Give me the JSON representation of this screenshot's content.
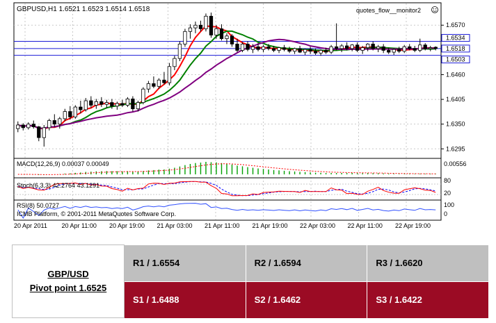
{
  "chart_data": {
    "type": "candlestick",
    "title": "GBPUSD,H1  1.6521 1.6523 1.6514 1.6518",
    "window_label": "quotes_flow__monitor2",
    "copyright": "ICMB Platform, © 2001-2011 MetaQuotes Software Corp.",
    "price_axis": {
      "ticks": [
        "1.6570",
        "1.6460",
        "1.6405",
        "1.6350",
        "1.6295"
      ],
      "tick_values": [
        1.657,
        1.646,
        1.6405,
        1.635,
        1.6295
      ],
      "ylim": [
        1.628,
        1.6592
      ]
    },
    "horizontal_lines": [
      {
        "label": "1.6534",
        "value": 1.6534
      },
      {
        "label": "1.6518",
        "value": 1.6518
      },
      {
        "label": "1.6503",
        "value": 1.6503
      }
    ],
    "time_labels": [
      "20 Apr 2011",
      "20 Apr 11:00",
      "20 Apr 19:00",
      "21 Apr 03:00",
      "21 Apr 11:00",
      "21 Apr 19:00",
      "22 Apr 03:00",
      "22 Apr 11:00",
      "22 Apr 19:00"
    ],
    "candles": [
      [
        1.634,
        1.6356,
        1.6332,
        1.6348
      ],
      [
        1.6348,
        1.6352,
        1.6336,
        1.6342
      ],
      [
        1.6342,
        1.6354,
        1.6338,
        1.635
      ],
      [
        1.635,
        1.6358,
        1.634,
        1.6344
      ],
      [
        1.6344,
        1.6346,
        1.6312,
        1.632
      ],
      [
        1.632,
        1.6348,
        1.63,
        1.6342
      ],
      [
        1.6342,
        1.6362,
        1.6336,
        1.6358
      ],
      [
        1.6358,
        1.6372,
        1.6344,
        1.635
      ],
      [
        1.635,
        1.6366,
        1.634,
        1.6362
      ],
      [
        1.6362,
        1.6384,
        1.6356,
        1.6378
      ],
      [
        1.6378,
        1.639,
        1.636,
        1.6366
      ],
      [
        1.6366,
        1.6392,
        1.6362,
        1.6388
      ],
      [
        1.6388,
        1.6402,
        1.6374,
        1.6382
      ],
      [
        1.6382,
        1.6408,
        1.6378,
        1.6402
      ],
      [
        1.6402,
        1.6412,
        1.6386,
        1.6392
      ],
      [
        1.6392,
        1.6406,
        1.6384,
        1.64
      ],
      [
        1.64,
        1.641,
        1.6388,
        1.6394
      ],
      [
        1.6394,
        1.6404,
        1.6386,
        1.6398
      ],
      [
        1.6398,
        1.6406,
        1.6384,
        1.639
      ],
      [
        1.639,
        1.64,
        1.6382,
        1.6396
      ],
      [
        1.6396,
        1.6404,
        1.6388,
        1.6392
      ],
      [
        1.6392,
        1.641,
        1.6388,
        1.6406
      ],
      [
        1.6406,
        1.6412,
        1.6378,
        1.6384
      ],
      [
        1.6384,
        1.6402,
        1.6378,
        1.6398
      ],
      [
        1.6398,
        1.6432,
        1.6394,
        1.6428
      ],
      [
        1.6428,
        1.6446,
        1.642,
        1.644
      ],
      [
        1.644,
        1.6456,
        1.643,
        1.6434
      ],
      [
        1.6434,
        1.6452,
        1.6428,
        1.6448
      ],
      [
        1.6448,
        1.6466,
        1.6438,
        1.6442
      ],
      [
        1.6442,
        1.6486,
        1.6436,
        1.6478
      ],
      [
        1.6478,
        1.6502,
        1.647,
        1.6496
      ],
      [
        1.6496,
        1.6534,
        1.649,
        1.6528
      ],
      [
        1.6528,
        1.6562,
        1.6522,
        1.6556
      ],
      [
        1.6556,
        1.6572,
        1.654,
        1.6564
      ],
      [
        1.6564,
        1.6578,
        1.6552,
        1.657
      ],
      [
        1.657,
        1.658,
        1.6556,
        1.6562
      ],
      [
        1.6562,
        1.6596,
        1.6556,
        1.659
      ],
      [
        1.659,
        1.6598,
        1.6542,
        1.6548
      ],
      [
        1.6548,
        1.657,
        1.654,
        1.6562
      ],
      [
        1.6562,
        1.6572,
        1.6536,
        1.654
      ],
      [
        1.654,
        1.6552,
        1.6528,
        1.6546
      ],
      [
        1.6546,
        1.655,
        1.6522,
        1.6528
      ],
      [
        1.6528,
        1.654,
        1.651,
        1.6514
      ],
      [
        1.6514,
        1.6532,
        1.651,
        1.6528
      ],
      [
        1.6528,
        1.6534,
        1.6512,
        1.6516
      ],
      [
        1.6516,
        1.6528,
        1.6508,
        1.6522
      ],
      [
        1.6522,
        1.653,
        1.6512,
        1.6516
      ],
      [
        1.6516,
        1.6526,
        1.651,
        1.6522
      ],
      [
        1.6522,
        1.6528,
        1.6514,
        1.6518
      ],
      [
        1.6518,
        1.6524,
        1.651,
        1.6514
      ],
      [
        1.6514,
        1.6522,
        1.6508,
        1.652
      ],
      [
        1.652,
        1.6526,
        1.6512,
        1.6516
      ],
      [
        1.6516,
        1.6522,
        1.6508,
        1.6512
      ],
      [
        1.6512,
        1.652,
        1.6506,
        1.6518
      ],
      [
        1.6518,
        1.6524,
        1.6508,
        1.651
      ],
      [
        1.651,
        1.6518,
        1.6504,
        1.6516
      ],
      [
        1.6516,
        1.6522,
        1.6506,
        1.6512
      ],
      [
        1.6512,
        1.6518,
        1.6504,
        1.6508
      ],
      [
        1.6508,
        1.6516,
        1.6502,
        1.6514
      ],
      [
        1.6514,
        1.652,
        1.6506,
        1.651
      ],
      [
        1.651,
        1.6526,
        1.6506,
        1.6522
      ],
      [
        1.6522,
        1.6574,
        1.6514,
        1.6518
      ],
      [
        1.6518,
        1.6528,
        1.651,
        1.6524
      ],
      [
        1.6524,
        1.6532,
        1.6514,
        1.6518
      ],
      [
        1.6518,
        1.6528,
        1.6512,
        1.6526
      ],
      [
        1.6526,
        1.6532,
        1.651,
        1.6514
      ],
      [
        1.6514,
        1.6524,
        1.6506,
        1.652
      ],
      [
        1.652,
        1.653,
        1.6512,
        1.6528
      ],
      [
        1.6528,
        1.6534,
        1.6514,
        1.6518
      ],
      [
        1.6518,
        1.6526,
        1.651,
        1.6522
      ],
      [
        1.6522,
        1.6528,
        1.6508,
        1.6514
      ],
      [
        1.6514,
        1.652,
        1.6506,
        1.651
      ],
      [
        1.651,
        1.6518,
        1.6504,
        1.6516
      ],
      [
        1.6516,
        1.6522,
        1.6508,
        1.6512
      ],
      [
        1.6512,
        1.6526,
        1.6508,
        1.6522
      ],
      [
        1.6522,
        1.6528,
        1.6514,
        1.6518
      ],
      [
        1.6518,
        1.6524,
        1.651,
        1.6514
      ],
      [
        1.6514,
        1.654,
        1.651,
        1.6526
      ],
      [
        1.6526,
        1.653,
        1.6514,
        1.6518
      ],
      [
        1.6518,
        1.6524,
        1.6512,
        1.652
      ],
      [
        1.6521,
        1.6523,
        1.6514,
        1.6518
      ]
    ],
    "indicators": {
      "macd": {
        "label": "MACD(12,26,9) 0.00037 0.00049",
        "scale_label": "0.00556"
      },
      "stoch": {
        "label": "Stoch(6,3,3) 42.2764 43.1291",
        "scale_labels": [
          "80",
          "20"
        ]
      },
      "rsi": {
        "label": "RSI(8) 50.0727",
        "scale_labels": [
          "100",
          "0"
        ]
      }
    },
    "colors": {
      "background": "#ffffff",
      "grid": "#c8c8c8",
      "candle": "#000000",
      "ma_fast": "#ff0000",
      "ma_mid": "#008000",
      "ma_slow": "#800080",
      "hline": "#1a1ad6",
      "macd_hist": "#00a000",
      "macd_signal": "#ff0000",
      "stoch_main": "#ff0000",
      "stoch_signal": "#0000ff",
      "rsi": "#3050ff"
    }
  },
  "pivots": {
    "pair": "GBP/USD",
    "pivot_point": "Pivot point 1.6525",
    "resistance": [
      "R1 / 1.6554",
      "R2 / 1.6594",
      "R3 / 1.6620"
    ],
    "support": [
      "S1 / 1.6488",
      "S2 / 1.6462",
      "S3 / 1.6422"
    ],
    "colors": {
      "resistance_bg": "#bfbfbf",
      "support_bg": "#9b0b24"
    }
  }
}
